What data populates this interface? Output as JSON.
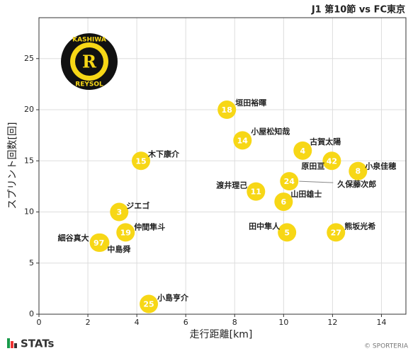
{
  "chart_data": {
    "type": "scatter",
    "title": "J1 第10節 vs FC東京",
    "x_label": "走行距離[km]",
    "y_label": "スプリント回数[回]",
    "xlim": [
      0,
      15
    ],
    "ylim": [
      0,
      29
    ],
    "xticks": [
      0,
      2,
      4,
      6,
      8,
      10,
      12,
      14
    ],
    "yticks": [
      0,
      5,
      10,
      15,
      20,
      25
    ],
    "grid": true,
    "color": "#f7d716",
    "points": [
      {
        "name": "垣田裕暉",
        "number": "18",
        "x": 7.68,
        "y": 20
      },
      {
        "name": "小屋松知哉",
        "number": "14",
        "x": 8.32,
        "y": 17
      },
      {
        "name": "古賀太陽",
        "number": "4",
        "x": 10.78,
        "y": 16
      },
      {
        "name": "原田亘",
        "number": "42",
        "x": 11.97,
        "y": 15
      },
      {
        "name": "小泉佳穂",
        "number": "8",
        "x": 13.04,
        "y": 14
      },
      {
        "name": "木下康介",
        "number": "15",
        "x": 4.17,
        "y": 15
      },
      {
        "name": "久保藤次郎",
        "number": "24",
        "x": 10.23,
        "y": 13
      },
      {
        "name": "渡井理己",
        "number": "11",
        "x": 8.87,
        "y": 12
      },
      {
        "name": "山田雄士",
        "number": "6",
        "x": 10.0,
        "y": 11
      },
      {
        "name": "ジエゴ",
        "number": "3",
        "x": 3.28,
        "y": 10
      },
      {
        "name": "田中隼人",
        "number": "5",
        "x": 10.14,
        "y": 8
      },
      {
        "name": "熊坂光希",
        "number": "27",
        "x": 12.14,
        "y": 8
      },
      {
        "name": "仲間隼斗",
        "number": "19",
        "x": 3.54,
        "y": 8
      },
      {
        "name": "中島舜",
        "number": null,
        "x": 2.5,
        "y": 7
      },
      {
        "name": "細谷真大",
        "number": "97",
        "x": 2.45,
        "y": 7
      },
      {
        "name": "小島亨介",
        "number": "25",
        "x": 4.49,
        "y": 1
      }
    ]
  },
  "logo": {
    "top": "KASHIWA",
    "bottom": "REYSOL",
    "letter": "R"
  },
  "footer": {
    "brand": "STATs",
    "copyright": "© SPORTERIA"
  }
}
